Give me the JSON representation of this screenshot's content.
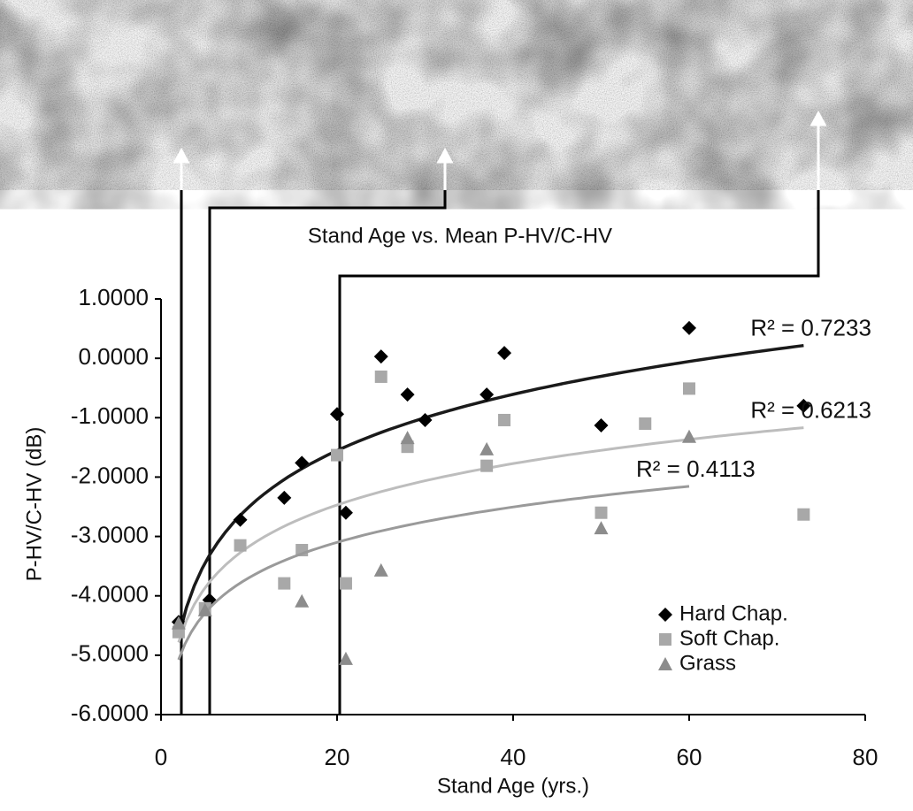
{
  "chart_data": {
    "type": "scatter",
    "title": "Stand Age vs. Mean P-HV/C-HV",
    "x_label": "Stand Age (yrs.)",
    "y_label": "P-HV/C-HV (dB)",
    "xlim": [
      0,
      80
    ],
    "xticks": [
      0,
      20,
      40,
      60,
      80
    ],
    "ylim": [
      -6,
      1
    ],
    "yticks": [
      {
        "value": 1,
        "label": "1.0000"
      },
      {
        "value": 0,
        "label": "0.0000"
      },
      {
        "value": -1,
        "label": "-1.0000"
      },
      {
        "value": -2,
        "label": "-2.0000"
      },
      {
        "value": -3,
        "label": "-3.0000"
      },
      {
        "value": -4,
        "label": "-4.0000"
      },
      {
        "value": -5,
        "label": "-5.0000"
      },
      {
        "value": -6,
        "label": "-6.0000"
      }
    ],
    "grid": false,
    "legend": "lower right",
    "trendline": "log",
    "series": [
      {
        "name": "Hard Chap.",
        "marker": "diamond",
        "color": "#000000",
        "trend_color": "#1a1a1a",
        "r_squared": "R² = 0.7233",
        "x": [
          2,
          5.5,
          9,
          14,
          16,
          20,
          21,
          25,
          28,
          30,
          37,
          39,
          50,
          60,
          73
        ],
        "values": [
          -4.44,
          -4.07,
          -2.72,
          -2.35,
          -1.76,
          -0.94,
          -2.6,
          0.03,
          -0.61,
          -1.04,
          -0.61,
          0.09,
          -1.13,
          0.51,
          -0.8
        ]
      },
      {
        "name": "Soft Chap.",
        "marker": "square",
        "color": "#a8a8a8",
        "trend_color": "#bdbdbd",
        "r_squared": "R² = 0.6213",
        "x": [
          2,
          5,
          9,
          14,
          16,
          20,
          21,
          25,
          28,
          37,
          39,
          50,
          55,
          60,
          73
        ],
        "values": [
          -4.61,
          -4.21,
          -3.15,
          -3.79,
          -3.23,
          -1.63,
          -3.79,
          -0.31,
          -1.49,
          -1.81,
          -1.04,
          -2.6,
          -1.1,
          -0.51,
          -2.63
        ]
      },
      {
        "name": "Grass",
        "marker": "triangle",
        "color": "#8c8c8c",
        "trend_color": "#9a9a9a",
        "r_squared": "R² = 0.4113",
        "x": [
          2,
          5,
          16,
          21,
          25,
          28,
          37,
          50,
          60
        ],
        "values": [
          -4.46,
          -4.24,
          -4.09,
          -5.06,
          -3.57,
          -1.34,
          -1.53,
          -2.86,
          -1.32
        ]
      }
    ]
  }
}
